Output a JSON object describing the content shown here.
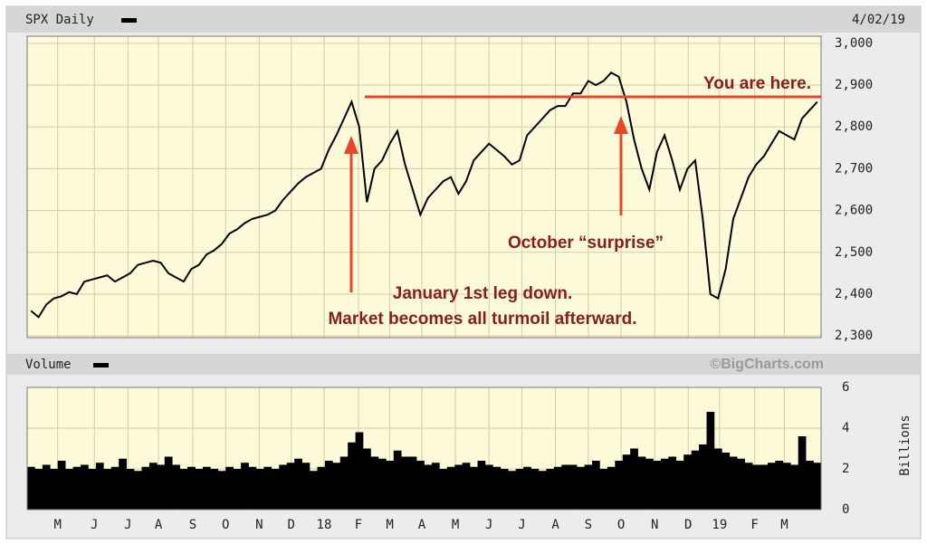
{
  "chart_data": [
    {
      "type": "line",
      "title": "SPX Daily",
      "date": "4/02/19",
      "series": [
        {
          "name": "SPX",
          "color": "#000000",
          "values": [
            2360,
            2345,
            2375,
            2390,
            2395,
            2405,
            2400,
            2430,
            2435,
            2440,
            2445,
            2430,
            2440,
            2450,
            2470,
            2475,
            2480,
            2475,
            2450,
            2440,
            2430,
            2460,
            2470,
            2495,
            2505,
            2520,
            2545,
            2555,
            2570,
            2580,
            2585,
            2590,
            2600,
            2625,
            2645,
            2665,
            2680,
            2690,
            2700,
            2745,
            2780,
            2820,
            2860,
            2800,
            2620,
            2700,
            2720,
            2760,
            2790,
            2710,
            2650,
            2590,
            2630,
            2650,
            2670,
            2680,
            2640,
            2670,
            2720,
            2740,
            2760,
            2745,
            2730,
            2710,
            2720,
            2780,
            2800,
            2820,
            2840,
            2850,
            2850,
            2880,
            2880,
            2910,
            2900,
            2910,
            2930,
            2920,
            2860,
            2770,
            2700,
            2650,
            2740,
            2780,
            2720,
            2650,
            2700,
            2720,
            2580,
            2400,
            2390,
            2460,
            2580,
            2630,
            2680,
            2710,
            2730,
            2760,
            2790,
            2780,
            2770,
            2820,
            2840,
            2860
          ]
        }
      ],
      "xlim": [
        -0.5,
        103.5
      ],
      "xticks": [
        {
          "value": 3.5,
          "label": "M"
        },
        {
          "value": 8.3,
          "label": "J"
        },
        {
          "value": 12.7,
          "label": "J"
        },
        {
          "value": 16.7,
          "label": "A"
        },
        {
          "value": 21.2,
          "label": "S"
        },
        {
          "value": 25.5,
          "label": "O"
        },
        {
          "value": 29.9,
          "label": "N"
        },
        {
          "value": 34.1,
          "label": "D"
        },
        {
          "value": 38.4,
          "label": "18"
        },
        {
          "value": 42.9,
          "label": "F"
        },
        {
          "value": 47.0,
          "label": "M"
        },
        {
          "value": 51.2,
          "label": "A"
        },
        {
          "value": 55.6,
          "label": "M"
        },
        {
          "value": 60.0,
          "label": "J"
        },
        {
          "value": 64.3,
          "label": "J"
        },
        {
          "value": 68.7,
          "label": "A"
        },
        {
          "value": 73.0,
          "label": "S"
        },
        {
          "value": 77.3,
          "label": "O"
        },
        {
          "value": 81.7,
          "label": "N"
        },
        {
          "value": 86.1,
          "label": "D"
        },
        {
          "value": 90.2,
          "label": "19"
        },
        {
          "value": 94.8,
          "label": "F"
        },
        {
          "value": 98.7,
          "label": "M"
        }
      ],
      "ylim": [
        2296,
        3017
      ],
      "yticks": [
        {
          "value": 2300,
          "label": "2,300"
        },
        {
          "value": 2400,
          "label": "2,400"
        },
        {
          "value": 2500,
          "label": "2,500"
        },
        {
          "value": 2600,
          "label": "2,600"
        },
        {
          "value": 2700,
          "label": "2,700"
        },
        {
          "value": 2800,
          "label": "2,800"
        },
        {
          "value": 2900,
          "label": "2,900"
        },
        {
          "value": 3000,
          "label": "3,000"
        }
      ],
      "grid": true,
      "background": "#fcfad8",
      "reference_line": {
        "value": 2872,
        "color": "#e8452a"
      },
      "annotations": [
        "You are here.",
        "October “surprise”",
        "January 1st leg down.",
        "Market becomes all turmoil afterward."
      ]
    },
    {
      "type": "bar",
      "title": "Volume",
      "source": "©BigCharts.com",
      "ylabel": "Billions",
      "series": [
        {
          "name": "Volume",
          "color": "#000000",
          "values": [
            2.1,
            2.0,
            2.2,
            2.0,
            2.4,
            2.0,
            2.1,
            2.2,
            2.0,
            2.3,
            2.0,
            2.1,
            2.5,
            2.0,
            1.9,
            2.1,
            2.3,
            2.2,
            2.6,
            2.2,
            2.0,
            2.1,
            2.0,
            2.1,
            2.0,
            1.9,
            2.1,
            2.0,
            2.3,
            2.1,
            2.0,
            2.1,
            2.0,
            2.2,
            2.3,
            2.5,
            2.3,
            1.9,
            2.1,
            2.4,
            2.3,
            2.6,
            3.3,
            3.8,
            3.0,
            2.6,
            2.5,
            2.4,
            2.9,
            2.6,
            2.6,
            2.4,
            2.2,
            2.3,
            2.0,
            2.1,
            2.2,
            2.3,
            2.1,
            2.4,
            2.2,
            2.1,
            2.0,
            1.9,
            2.0,
            2.1,
            2.0,
            1.9,
            2.0,
            2.1,
            2.2,
            2.2,
            2.1,
            2.2,
            2.4,
            2.0,
            2.1,
            2.4,
            2.7,
            3.0,
            2.6,
            2.5,
            2.4,
            2.5,
            2.6,
            2.4,
            2.7,
            2.9,
            3.2,
            4.8,
            3.0,
            2.8,
            2.6,
            2.5,
            2.3,
            2.2,
            2.2,
            2.3,
            2.4,
            2.3,
            2.2,
            3.6,
            2.4,
            2.3
          ]
        }
      ],
      "ylim": [
        0,
        6
      ],
      "yticks": [
        0,
        2,
        4,
        6
      ],
      "grid": true,
      "background": "#fcfad8"
    }
  ]
}
